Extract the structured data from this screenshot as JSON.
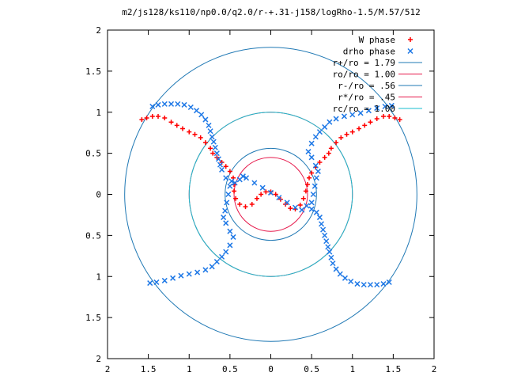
{
  "chart_data": {
    "type": "scatter",
    "title": "m2/js128/ks110/np0.0/q2.0/r-+.31-j158/logRho-1.5/M.57/512",
    "xlabel": "",
    "ylabel": "",
    "xlim": [
      -2,
      2
    ],
    "ylim": [
      -2,
      2
    ],
    "grid": false,
    "legend_position": "top-right",
    "x_ticks": [
      {
        "value": -2,
        "label": "2"
      },
      {
        "value": -1.5,
        "label": "1.5"
      },
      {
        "value": -1,
        "label": "1"
      },
      {
        "value": -0.5,
        "label": "0.5"
      },
      {
        "value": 0,
        "label": "0"
      },
      {
        "value": 0.5,
        "label": "0.5"
      },
      {
        "value": 1,
        "label": "1"
      },
      {
        "value": 1.5,
        "label": "1.5"
      },
      {
        "value": 2,
        "label": "2"
      }
    ],
    "y_ticks": [
      {
        "value": 2,
        "label": "2"
      },
      {
        "value": 1.5,
        "label": "1.5"
      },
      {
        "value": 1,
        "label": "1"
      },
      {
        "value": 0.5,
        "label": "0.5"
      },
      {
        "value": 0,
        "label": "0"
      },
      {
        "value": -0.5,
        "label": "0.5"
      },
      {
        "value": -1,
        "label": "1"
      },
      {
        "value": -1.5,
        "label": "1.5"
      },
      {
        "value": -2,
        "label": "2"
      }
    ],
    "series": [
      {
        "name": "W phase",
        "marker": "plus",
        "color": "#ff0000",
        "points": [
          [
            -1.58,
            0.91
          ],
          [
            -1.52,
            0.93
          ],
          [
            -1.45,
            0.95
          ],
          [
            -1.38,
            0.95
          ],
          [
            -1.3,
            0.93
          ],
          [
            -1.22,
            0.88
          ],
          [
            -1.15,
            0.84
          ],
          [
            -1.08,
            0.8
          ],
          [
            -1.0,
            0.76
          ],
          [
            -0.93,
            0.73
          ],
          [
            -0.86,
            0.69
          ],
          [
            -0.8,
            0.63
          ],
          [
            -0.74,
            0.56
          ],
          [
            -0.71,
            0.5
          ],
          [
            -0.66,
            0.45
          ],
          [
            -0.6,
            0.39
          ],
          [
            -0.55,
            0.34
          ],
          [
            -0.5,
            0.28
          ],
          [
            -0.46,
            0.2
          ],
          [
            -0.45,
            0.12
          ],
          [
            -0.45,
            0.04
          ],
          [
            -0.43,
            -0.05
          ],
          [
            -0.38,
            -0.12
          ],
          [
            -0.31,
            -0.15
          ],
          [
            -0.23,
            -0.12
          ],
          [
            -0.17,
            -0.05
          ],
          [
            -0.12,
            0.0
          ],
          [
            -0.06,
            0.03
          ],
          [
            0.0,
            0.03
          ],
          [
            0.06,
            0.0
          ],
          [
            0.12,
            -0.06
          ],
          [
            0.18,
            -0.12
          ],
          [
            0.24,
            -0.17
          ],
          [
            0.3,
            -0.18
          ],
          [
            0.36,
            -0.13
          ],
          [
            0.4,
            -0.05
          ],
          [
            0.43,
            0.04
          ],
          [
            0.45,
            0.12
          ],
          [
            0.47,
            0.2
          ],
          [
            0.5,
            0.26
          ],
          [
            0.55,
            0.33
          ],
          [
            0.6,
            0.39
          ],
          [
            0.66,
            0.45
          ],
          [
            0.71,
            0.5
          ],
          [
            0.74,
            0.56
          ],
          [
            0.8,
            0.63
          ],
          [
            0.86,
            0.69
          ],
          [
            0.93,
            0.73
          ],
          [
            1.0,
            0.76
          ],
          [
            1.08,
            0.8
          ],
          [
            1.15,
            0.84
          ],
          [
            1.22,
            0.88
          ],
          [
            1.3,
            0.92
          ],
          [
            1.38,
            0.95
          ],
          [
            1.45,
            0.95
          ],
          [
            1.52,
            0.93
          ],
          [
            1.58,
            0.91
          ]
        ]
      },
      {
        "name": "drho phase",
        "marker": "cross",
        "color": "#1e78e6",
        "points": [
          [
            -1.45,
            1.07
          ],
          [
            -1.38,
            1.09
          ],
          [
            -1.3,
            1.1
          ],
          [
            -1.22,
            1.1
          ],
          [
            -1.14,
            1.1
          ],
          [
            -1.06,
            1.09
          ],
          [
            -0.98,
            1.06
          ],
          [
            -0.91,
            1.02
          ],
          [
            -0.85,
            0.97
          ],
          [
            -0.8,
            0.91
          ],
          [
            -0.76,
            0.84
          ],
          [
            -0.74,
            0.77
          ],
          [
            -0.72,
            0.7
          ],
          [
            -0.7,
            0.64
          ],
          [
            -0.68,
            0.57
          ],
          [
            -0.66,
            0.5
          ],
          [
            -0.64,
            0.43
          ],
          [
            -0.62,
            0.36
          ],
          [
            -0.6,
            0.3
          ],
          [
            -0.55,
            0.2
          ],
          [
            -0.48,
            0.16
          ],
          [
            -0.44,
            0.14
          ],
          [
            -0.38,
            0.18
          ],
          [
            -0.34,
            0.22
          ],
          [
            -0.3,
            0.2
          ],
          [
            -0.2,
            0.14
          ],
          [
            -0.1,
            0.08
          ],
          [
            0.0,
            0.02
          ],
          [
            0.1,
            -0.04
          ],
          [
            0.2,
            -0.1
          ],
          [
            0.3,
            -0.16
          ],
          [
            0.38,
            -0.19
          ],
          [
            0.44,
            -0.14
          ],
          [
            0.5,
            -0.18
          ],
          [
            0.56,
            -0.22
          ],
          [
            0.6,
            -0.28
          ],
          [
            0.62,
            -0.36
          ],
          [
            0.64,
            -0.43
          ],
          [
            0.66,
            -0.5
          ],
          [
            0.68,
            -0.57
          ],
          [
            0.7,
            -0.64
          ],
          [
            0.72,
            -0.7
          ],
          [
            0.74,
            -0.77
          ],
          [
            0.76,
            -0.84
          ],
          [
            0.8,
            -0.91
          ],
          [
            0.85,
            -0.97
          ],
          [
            0.91,
            -1.02
          ],
          [
            0.98,
            -1.06
          ],
          [
            1.06,
            -1.09
          ],
          [
            1.14,
            -1.1
          ],
          [
            1.22,
            -1.1
          ],
          [
            1.3,
            -1.1
          ],
          [
            1.38,
            -1.09
          ],
          [
            1.45,
            -1.07
          ],
          [
            -0.5,
            0.1
          ],
          [
            -0.52,
            0.0
          ],
          [
            -0.54,
            -0.1
          ],
          [
            -0.56,
            -0.2
          ],
          [
            -0.58,
            -0.28
          ],
          [
            -0.55,
            -0.35
          ],
          [
            -0.5,
            -0.45
          ],
          [
            -0.46,
            -0.52
          ],
          [
            -0.5,
            -0.62
          ],
          [
            -0.55,
            -0.7
          ],
          [
            -0.6,
            -0.76
          ],
          [
            -0.66,
            -0.82
          ],
          [
            -0.72,
            -0.88
          ],
          [
            -0.8,
            -0.92
          ],
          [
            -0.9,
            -0.95
          ],
          [
            -1.0,
            -0.97
          ],
          [
            -1.1,
            -0.99
          ],
          [
            -1.2,
            -1.02
          ],
          [
            -1.3,
            -1.05
          ],
          [
            -1.4,
            -1.07
          ],
          [
            -1.48,
            -1.08
          ],
          [
            0.5,
            -0.1
          ],
          [
            0.52,
            0.0
          ],
          [
            0.54,
            0.1
          ],
          [
            0.56,
            0.2
          ],
          [
            0.58,
            0.28
          ],
          [
            0.55,
            0.35
          ],
          [
            0.5,
            0.45
          ],
          [
            0.46,
            0.52
          ],
          [
            0.5,
            0.62
          ],
          [
            0.55,
            0.7
          ],
          [
            0.6,
            0.76
          ],
          [
            0.66,
            0.82
          ],
          [
            0.72,
            0.88
          ],
          [
            0.8,
            0.92
          ],
          [
            0.9,
            0.95
          ],
          [
            1.0,
            0.97
          ],
          [
            1.1,
            0.99
          ],
          [
            1.2,
            1.02
          ],
          [
            1.3,
            1.05
          ],
          [
            1.4,
            1.07
          ],
          [
            1.48,
            1.08
          ]
        ]
      },
      {
        "name": "r+/ro = 1.79",
        "type": "circle",
        "radius": 1.79,
        "color": "#1f78b4"
      },
      {
        "name": "ro/ro = 1.00",
        "type": "circle",
        "radius": 1.0,
        "color": "#e6194b"
      },
      {
        "name": "r-/ro = .56",
        "type": "circle",
        "radius": 0.56,
        "color": "#1f78b4"
      },
      {
        "name": "r*/ro = .45",
        "type": "circle",
        "radius": 0.45,
        "color": "#e6194b"
      },
      {
        "name": "rc/ro = 1.00",
        "type": "circle",
        "radius": 1.0,
        "color": "#17becf"
      }
    ]
  }
}
